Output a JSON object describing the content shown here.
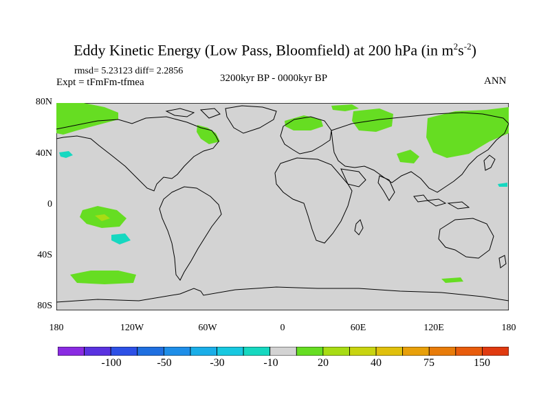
{
  "title": {
    "main": "Eddy Kinetic Energy (Low Pass, Bloomfield) at 200 hPa (in m",
    "sup1": "2",
    "mid": "s",
    "sup2": "-2",
    "end": ")"
  },
  "stats": "rmsd= 5.23123 diff= 2.2856",
  "experiment": "Expt = tFmFm-tfmea",
  "period": "3200kyr BP - 0000kyr BP",
  "season": "ANN",
  "lat_labels": [
    "80N",
    "40N",
    "0",
    "40S",
    "80S"
  ],
  "lon_labels": [
    "180",
    "120W",
    "60W",
    "0",
    "60E",
    "120E",
    "180"
  ],
  "colorbar": {
    "colors": [
      "#8a2be2",
      "#5a32e0",
      "#2d50e6",
      "#1f6fe0",
      "#1e8ee8",
      "#1aaee8",
      "#18c8e0",
      "#16d8c0",
      "#d3d3d3",
      "#66dd22",
      "#a8dc14",
      "#c8d410",
      "#e0c00c",
      "#e8a00a",
      "#e87c0a",
      "#e85c0c",
      "#e03a10"
    ],
    "labels": [
      "-100",
      "-50",
      "-30",
      "-10",
      "20",
      "40",
      "75",
      "150"
    ]
  },
  "colors": {
    "ocean_gray": "#d3d3d3",
    "positive_green": "#66dd22",
    "positive_yellowgreen": "#a8dc14",
    "negative_cyan": "#16d8c0"
  }
}
